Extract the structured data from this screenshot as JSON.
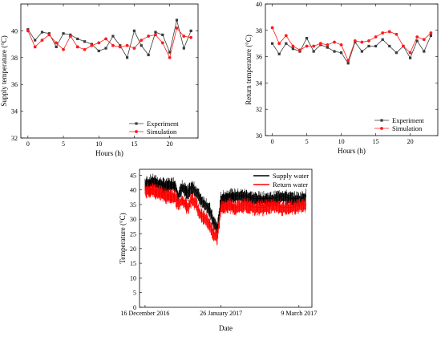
{
  "colors": {
    "experiment": "#3a3a3a",
    "simulation": "#ff1a1a",
    "supply_water": "#000000",
    "return_water": "#ff0000"
  },
  "chart_data": [
    {
      "type": "line",
      "xlabel": "Hours (h)",
      "ylabel": "Supply temperature (°C)",
      "xlim": [
        -1,
        24
      ],
      "ylim": [
        32,
        42
      ],
      "xticks": [
        "0",
        "5",
        "10",
        "15",
        "20"
      ],
      "yticks": [
        "32",
        "34",
        "36",
        "38",
        "40"
      ],
      "grid": false,
      "legend": "bottom-right",
      "x": [
        0,
        1,
        2,
        3,
        4,
        5,
        6,
        7,
        8,
        9,
        10,
        11,
        12,
        13,
        14,
        15,
        16,
        17,
        18,
        19,
        20,
        21,
        22,
        23
      ],
      "series": [
        {
          "name": "Experiment",
          "marker": "square",
          "values": [
            40.1,
            39.3,
            39.9,
            39.8,
            38.8,
            39.8,
            39.7,
            39.4,
            39.2,
            39.0,
            38.5,
            38.7,
            39.6,
            38.9,
            38.0,
            40.0,
            38.9,
            38.2,
            39.9,
            39.7,
            38.4,
            40.8,
            38.7,
            40.0
          ]
        },
        {
          "name": "Simulation",
          "marker": "circle",
          "values": [
            40.0,
            38.8,
            39.3,
            39.7,
            39.1,
            38.6,
            39.6,
            38.8,
            38.6,
            38.9,
            39.1,
            39.4,
            38.9,
            38.8,
            38.9,
            38.7,
            39.3,
            39.6,
            39.7,
            39.1,
            38.0,
            40.2,
            39.6,
            39.5
          ]
        }
      ]
    },
    {
      "type": "line",
      "xlabel": "Hours (h)",
      "ylabel": "Return temperature (°C)",
      "xlim": [
        -1,
        24
      ],
      "ylim": [
        30,
        40
      ],
      "xticks": [
        "0",
        "5",
        "10",
        "15",
        "20"
      ],
      "yticks": [
        "30",
        "32",
        "34",
        "36",
        "38",
        "40"
      ],
      "grid": false,
      "legend": "bottom-right",
      "x": [
        0,
        1,
        2,
        3,
        4,
        5,
        6,
        7,
        8,
        9,
        10,
        11,
        12,
        13,
        14,
        15,
        16,
        17,
        18,
        19,
        20,
        21,
        22,
        23
      ],
      "series": [
        {
          "name": "Experiment",
          "marker": "square",
          "values": [
            37.0,
            36.2,
            37.0,
            36.6,
            36.4,
            37.4,
            36.4,
            36.9,
            36.7,
            36.4,
            36.3,
            35.5,
            37.1,
            36.4,
            36.8,
            36.8,
            37.3,
            36.8,
            36.3,
            36.8,
            35.9,
            37.2,
            36.4,
            37.6
          ]
        },
        {
          "name": "Simulation",
          "marker": "circle",
          "values": [
            38.2,
            37.0,
            37.6,
            36.8,
            36.5,
            36.8,
            36.8,
            37.0,
            36.9,
            37.1,
            36.9,
            35.7,
            37.2,
            37.1,
            37.2,
            37.5,
            37.8,
            37.9,
            37.7,
            36.8,
            36.3,
            37.5,
            37.3,
            37.8
          ]
        }
      ]
    },
    {
      "type": "line",
      "xlabel": "Date",
      "ylabel": "Temperature (°C)",
      "xlim": [
        "2016-12-13",
        "2017-03-16"
      ],
      "ylim": [
        0,
        47
      ],
      "xticks": [
        "16 December 2016",
        "26 January 2017",
        "9 March 2017"
      ],
      "yticks": [
        "0",
        "5",
        "10",
        "15",
        "20",
        "25",
        "30",
        "35",
        "40",
        "45"
      ],
      "grid": false,
      "legend": "top-right",
      "x": [
        "2016-12-16",
        "2016-12-20",
        "2016-12-24",
        "2016-12-28",
        "2017-01-01",
        "2017-01-03",
        "2017-01-05",
        "2017-01-08",
        "2017-01-10",
        "2017-01-12",
        "2017-01-14",
        "2017-01-16",
        "2017-01-18",
        "2017-01-20",
        "2017-01-22",
        "2017-01-24",
        "2017-01-26",
        "2017-01-30",
        "2017-02-03",
        "2017-02-08",
        "2017-02-13",
        "2017-02-18",
        "2017-02-23",
        "2017-02-28",
        "2017-03-05",
        "2017-03-10",
        "2017-03-13"
      ],
      "series": [
        {
          "name": "Supply water",
          "values": [
            42,
            43,
            42,
            41.5,
            42,
            38,
            41,
            39,
            41,
            40,
            38,
            36,
            35,
            33,
            29,
            27,
            37,
            38,
            38,
            38,
            37,
            37,
            37,
            38,
            37,
            37,
            38
          ]
        },
        {
          "name": "Return water",
          "values": [
            40,
            40,
            39,
            38,
            38,
            35,
            37,
            34,
            37,
            36,
            33,
            31,
            30,
            28,
            25,
            24,
            34,
            35,
            34,
            35,
            34,
            34,
            35,
            34,
            34,
            35,
            35
          ]
        }
      ]
    }
  ]
}
